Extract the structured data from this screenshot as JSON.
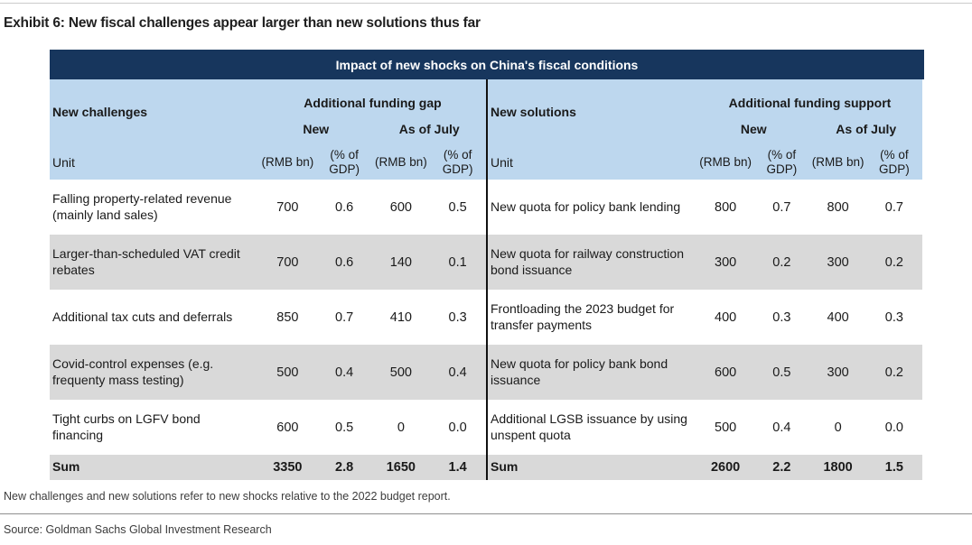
{
  "exhibit": {
    "title": "Exhibit 6: New fiscal challenges appear larger than new solutions thus far"
  },
  "table": {
    "title": "Impact of new shocks on China's fiscal conditions",
    "unit_row_label": "Unit",
    "unit_labels": [
      "(RMB bn)",
      "(% of GDP)",
      "(RMB bn)",
      "(% of GDP)"
    ],
    "subgroup_labels": {
      "new": "New",
      "as_of_july": "As of July"
    },
    "left": {
      "group_label": "New challenges",
      "span_label": "Additional funding gap",
      "rows": [
        {
          "label": "Falling property-related revenue (mainly land sales)",
          "values": [
            "700",
            "0.6",
            "600",
            "0.5"
          ]
        },
        {
          "label": "Larger-than-scheduled VAT credit rebates",
          "values": [
            "700",
            "0.6",
            "140",
            "0.1"
          ]
        },
        {
          "label": "Additional tax cuts and deferrals",
          "values": [
            "850",
            "0.7",
            "410",
            "0.3"
          ]
        },
        {
          "label": "Covid-control expenses (e.g. frequenty mass testing)",
          "values": [
            "500",
            "0.4",
            "500",
            "0.4"
          ]
        },
        {
          "label": "Tight curbs on LGFV bond financing",
          "values": [
            "600",
            "0.5",
            "0",
            "0.0"
          ]
        }
      ],
      "sum": {
        "label": "Sum",
        "values": [
          "3350",
          "2.8",
          "1650",
          "1.4"
        ]
      }
    },
    "right": {
      "group_label": "New solutions",
      "span_label": "Additional funding support",
      "rows": [
        {
          "label": "New quota for policy bank lending",
          "values": [
            "800",
            "0.7",
            "800",
            "0.7"
          ]
        },
        {
          "label": "New quota for railway construction bond issuance",
          "values": [
            "300",
            "0.2",
            "300",
            "0.2"
          ]
        },
        {
          "label": "Frontloading the 2023 budget for transfer payments",
          "values": [
            "400",
            "0.3",
            "400",
            "0.3"
          ]
        },
        {
          "label": "New quota for policy bank bond issuance",
          "values": [
            "600",
            "0.5",
            "300",
            "0.2"
          ]
        },
        {
          "label": "Additional LGSB issuance by using unspent quota",
          "values": [
            "500",
            "0.4",
            "0",
            "0.0"
          ]
        }
      ],
      "sum": {
        "label": "Sum",
        "values": [
          "2600",
          "2.2",
          "1800",
          "1.5"
        ]
      }
    }
  },
  "footnotes": {
    "note": "New challenges and new solutions refer to new shocks relative to the 2022 budget report.",
    "source": "Source: Goldman Sachs Global Investment Research"
  },
  "colors": {
    "navy": "#17365d",
    "header_blue": "#bdd7ee",
    "row_grey": "#d9d9d9"
  }
}
